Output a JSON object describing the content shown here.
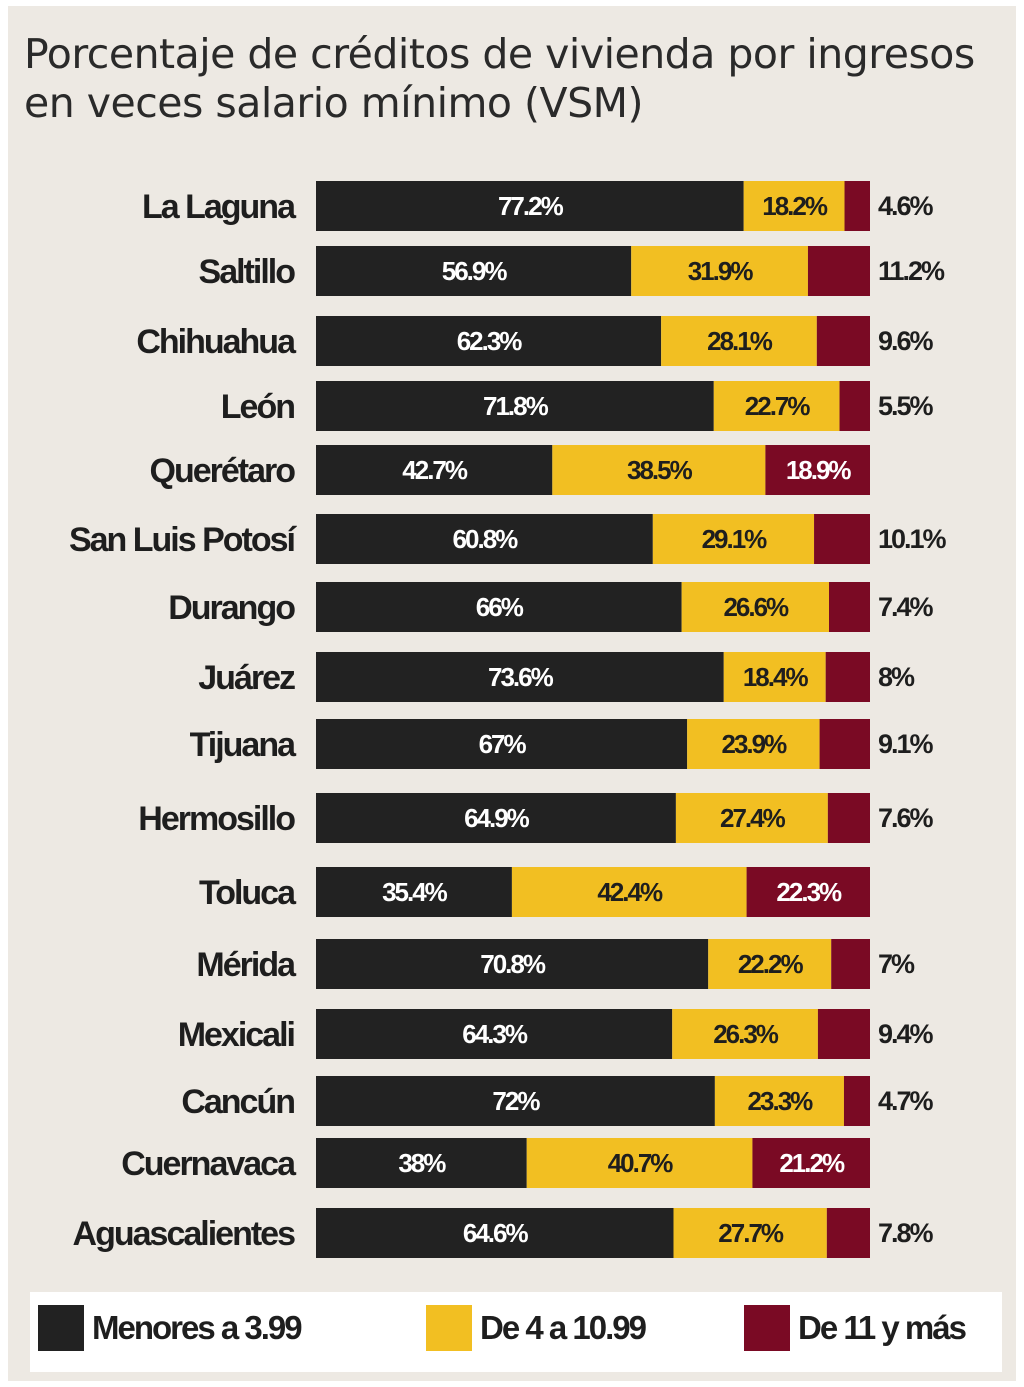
{
  "title": "Porcentaje de créditos de vivienda por ingresos en veces salario mínimo (VSM)",
  "colors": {
    "low": "#222222",
    "mid": "#f2bf22",
    "high": "#7a0a24",
    "low_text": "#ffffff",
    "mid_text": "#1e1e1e",
    "high_text": "#ffffff"
  },
  "chart_data": {
    "type": "bar",
    "orientation": "horizontal",
    "stacked": true,
    "title": "Porcentaje de créditos de vivienda por ingresos en veces salario mínimo (VSM)",
    "xlabel": "",
    "ylabel": "",
    "xlim": [
      0,
      100
    ],
    "legend_position": "bottom",
    "categories": [
      "La Laguna",
      "Saltillo",
      "Chihuahua",
      "León",
      "Querétaro",
      "San Luis Potosí",
      "Durango",
      "Juárez",
      "Tijuana",
      "Hermosillo",
      "Toluca",
      "Mérida",
      "Mexicali",
      "Cancún",
      "Cuernavaca",
      "Aguascalientes"
    ],
    "series": [
      {
        "name": "Menores a 3.99",
        "values": [
          77.2,
          56.9,
          62.3,
          71.8,
          42.7,
          60.8,
          66,
          73.6,
          67,
          64.9,
          35.4,
          70.8,
          64.3,
          72,
          38,
          64.6
        ],
        "labels": [
          "77.2%",
          "56.9%",
          "62.3%",
          "71.8%",
          "42.7%",
          "60.8%",
          "66%",
          "73.6%",
          "67%",
          "64.9%",
          "35.4%",
          "70.8%",
          "64.3%",
          "72%",
          "38%",
          "64.6%"
        ]
      },
      {
        "name": "De 4 a 10.99",
        "values": [
          18.2,
          31.9,
          28.1,
          22.7,
          38.5,
          29.1,
          26.6,
          18.4,
          23.9,
          27.4,
          42.4,
          22.2,
          26.3,
          23.3,
          40.7,
          27.7
        ],
        "labels": [
          "18.2%",
          "31.9%",
          "28.1%",
          "22.7%",
          "38.5%",
          "29.1%",
          "26.6%",
          "18.4%",
          "23.9%",
          "27.4%",
          "42.4%",
          "22.2%",
          "26.3%",
          "23.3%",
          "40.7%",
          "27.7%"
        ]
      },
      {
        "name": "De 11 y más",
        "values": [
          4.6,
          11.2,
          9.6,
          5.5,
          18.9,
          10.1,
          7.4,
          8,
          9.1,
          7.6,
          22.3,
          7,
          9.4,
          4.7,
          21.2,
          7.8
        ],
        "labels": [
          "4.6%",
          "11.2%",
          "9.6%",
          "5.5%",
          "18.9%",
          "10.1%",
          "7.4%",
          "8%",
          "9.1%",
          "7.6%",
          "22.3%",
          "7%",
          "9.4%",
          "4.7%",
          "21.2%",
          "7.8%"
        ],
        "label_inside": [
          false,
          false,
          false,
          false,
          true,
          false,
          false,
          false,
          false,
          false,
          true,
          false,
          false,
          false,
          true,
          false
        ]
      }
    ]
  },
  "legend": {
    "items": [
      {
        "label": "Menores a 3.99"
      },
      {
        "label": "De 4 a 10.99"
      },
      {
        "label": "De 11 y más"
      }
    ]
  }
}
